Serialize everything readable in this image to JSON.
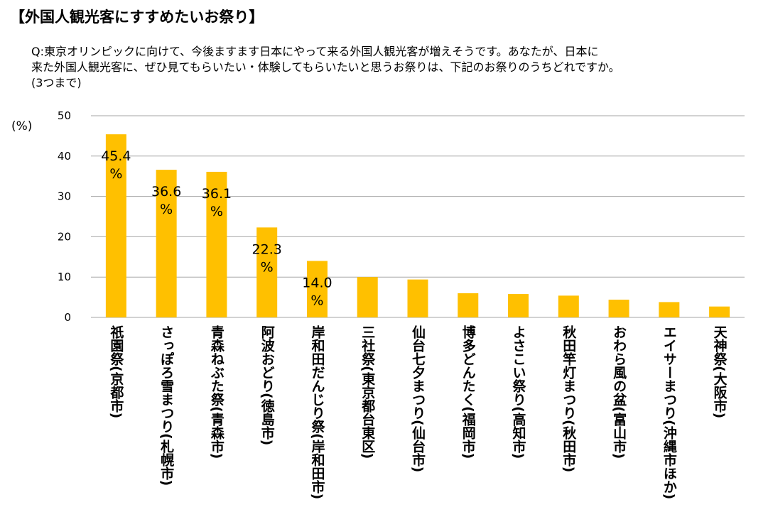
{
  "header": {
    "title": "【外国人観光客にすすめたいお祭り】"
  },
  "question": {
    "lines": [
      "Q:東京オリンピックに向けて、今後ますます日本にやって来る外国人観光客が増えそうです。あなたが、日本に",
      "来た外国人観光客に、ぜひ見てもらいたい・体験してもらいたいと思うお祭りは、下記のお祭りのうちどれですか。",
      "(3つまで)"
    ]
  },
  "chart_data": {
    "type": "bar",
    "ylabel": "(%)",
    "ylim": [
      0,
      50
    ],
    "yticks": [
      0,
      10,
      20,
      30,
      40,
      50
    ],
    "grid": true,
    "bar_color": "#FFC000",
    "gridline_color": "#A6A6A6",
    "categories": [
      "祇園祭(京都市)",
      "さっぽろ雪まつり(札幌市)",
      "青森ねぶた祭(青森市)",
      "阿波おどり(徳島市)",
      "岸和田だんじり祭(岸和田市)",
      "三社祭(東京都台東区)",
      "仙台七夕まつり(仙台市)",
      "博多どんたく(福岡市)",
      "よさこい祭り(高知市)",
      "秋田竿灯まつり(秋田市)",
      "おわら風の盆(富山市)",
      "エイサーまつり(沖縄市ほか)",
      "天神祭(大阪市)"
    ],
    "values": [
      45.4,
      36.6,
      36.1,
      22.3,
      14.0,
      10.0,
      9.4,
      6.0,
      5.8,
      5.4,
      4.4,
      3.8,
      2.7
    ],
    "data_labels": [
      {
        "index": 0,
        "text": "45.4",
        "unit": "%"
      },
      {
        "index": 1,
        "text": "36.6",
        "unit": "%"
      },
      {
        "index": 2,
        "text": "36.1",
        "unit": "%"
      },
      {
        "index": 3,
        "text": "22.3",
        "unit": "%"
      },
      {
        "index": 4,
        "text": "14.0",
        "unit": "%"
      }
    ]
  }
}
